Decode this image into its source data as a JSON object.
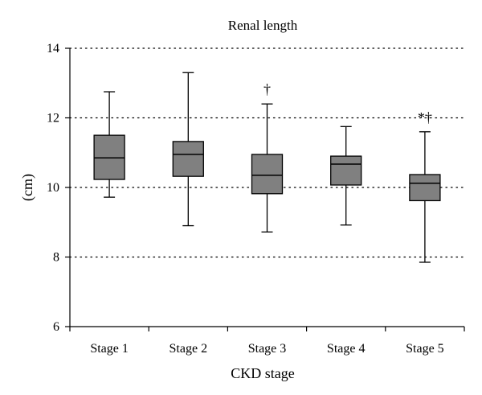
{
  "chart_data": {
    "type": "box",
    "title": "Renal length",
    "xlabel": "CKD stage",
    "ylabel": "(cm)",
    "ylim": [
      6,
      14
    ],
    "yticks": [
      6,
      8,
      10,
      12,
      14
    ],
    "grid": "horizontal dotted",
    "box_color": "#808080",
    "categories": [
      "Stage 1",
      "Stage 2",
      "Stage 3",
      "Stage 4",
      "Stage 5"
    ],
    "boxes": [
      {
        "min": 9.72,
        "q1": 10.23,
        "median": 10.85,
        "q3": 11.5,
        "max": 12.75,
        "annotation": ""
      },
      {
        "min": 8.9,
        "q1": 10.32,
        "median": 10.95,
        "q3": 11.32,
        "max": 13.3,
        "annotation": ""
      },
      {
        "min": 8.72,
        "q1": 9.82,
        "median": 10.35,
        "q3": 10.95,
        "max": 12.4,
        "annotation": "†"
      },
      {
        "min": 8.92,
        "q1": 10.07,
        "median": 10.67,
        "q3": 10.9,
        "max": 11.75,
        "annotation": ""
      },
      {
        "min": 7.85,
        "q1": 9.62,
        "median": 10.12,
        "q3": 10.37,
        "max": 11.6,
        "annotation": "*†"
      }
    ]
  }
}
